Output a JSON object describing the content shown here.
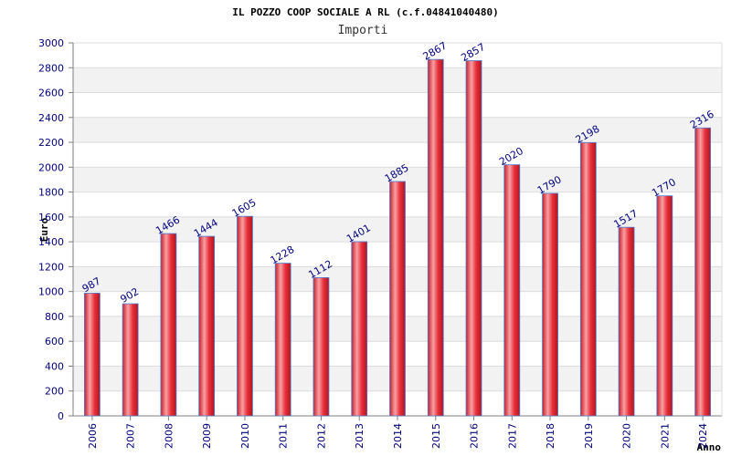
{
  "chart_data": {
    "type": "bar",
    "title": "IL POZZO COOP SOCIALE A RL (c.f.04841040480)",
    "subtitle": "Importi",
    "xlabel": "Anno",
    "ylabel": "Euro",
    "categories": [
      "2006",
      "2007",
      "2008",
      "2009",
      "2010",
      "2011",
      "2012",
      "2013",
      "2014",
      "2015",
      "2016",
      "2017",
      "2018",
      "2019",
      "2020",
      "2021",
      "2024"
    ],
    "values": [
      987,
      902,
      1466,
      1444,
      1605,
      1228,
      1112,
      1401,
      1885,
      2867,
      2857,
      2020,
      1790,
      2198,
      1517,
      1770,
      2316
    ],
    "ylim": [
      0,
      3000
    ],
    "ytick_step": 200,
    "grid": true,
    "bar_color": "#e8303a",
    "bar_highlight": "#f9a0a4",
    "bar_edge": "#4a7fd6",
    "text_color": "#00007f"
  }
}
